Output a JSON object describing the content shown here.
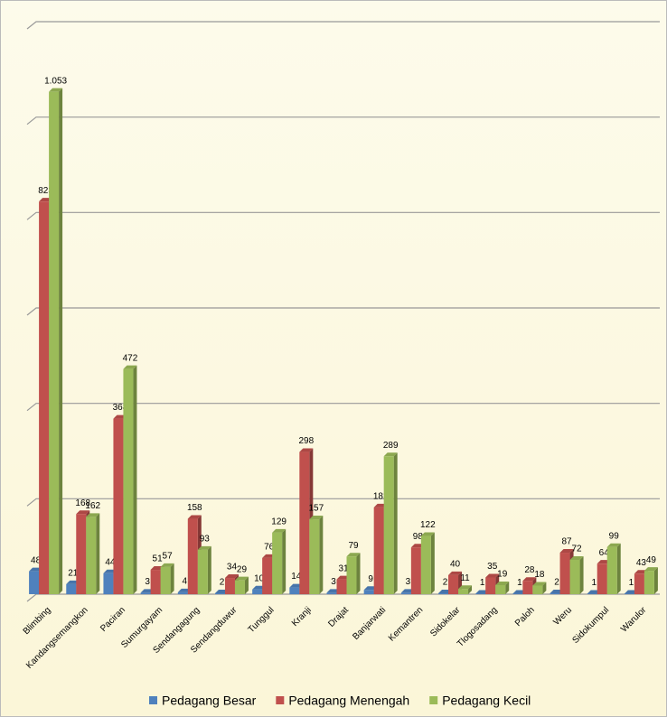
{
  "chart_data": {
    "type": "bar",
    "categories": [
      "Blimbing",
      "Kandangsemangkon",
      "Paciran",
      "Sumurgayam",
      "Sendangagung",
      "Sendangduwur",
      "Tunggul",
      "Kranji",
      "Drajat",
      "Banjarwati",
      "Kemantren",
      "Sidokelar",
      "Tlogosadang",
      "Paloh",
      "Weru",
      "Sidokumpul",
      "Warulor"
    ],
    "series": [
      {
        "name": "Pedagang Besar",
        "color": "#4f81bd",
        "values": [
          48,
          21,
          44,
          3,
          4,
          2,
          10,
          14,
          3,
          9,
          3,
          2,
          1,
          1,
          2,
          1,
          1
        ]
      },
      {
        "name": "Pedagang Menengah",
        "color": "#c0504d",
        "values": [
          823,
          168,
          368,
          51,
          158,
          34,
          76,
          298,
          31,
          182,
          98,
          40,
          35,
          28,
          87,
          64,
          43
        ]
      },
      {
        "name": "Pedagang Kecil",
        "color": "#9bbb59",
        "values": [
          1053,
          162,
          472,
          57,
          93,
          29,
          129,
          157,
          79,
          289,
          122,
          11,
          19,
          18,
          72,
          99,
          49
        ],
        "value_labels": [
          "1.053",
          "162",
          "472",
          "57",
          "93",
          "29",
          "129",
          "157",
          "79",
          "289",
          "122",
          "11",
          "19",
          "18",
          "72",
          "99",
          "49"
        ]
      }
    ],
    "ylim": [
      0,
      1200
    ],
    "yticks": [
      0,
      200,
      400,
      600,
      800,
      1000,
      1200
    ],
    "grid": true,
    "legend": "bottom"
  }
}
